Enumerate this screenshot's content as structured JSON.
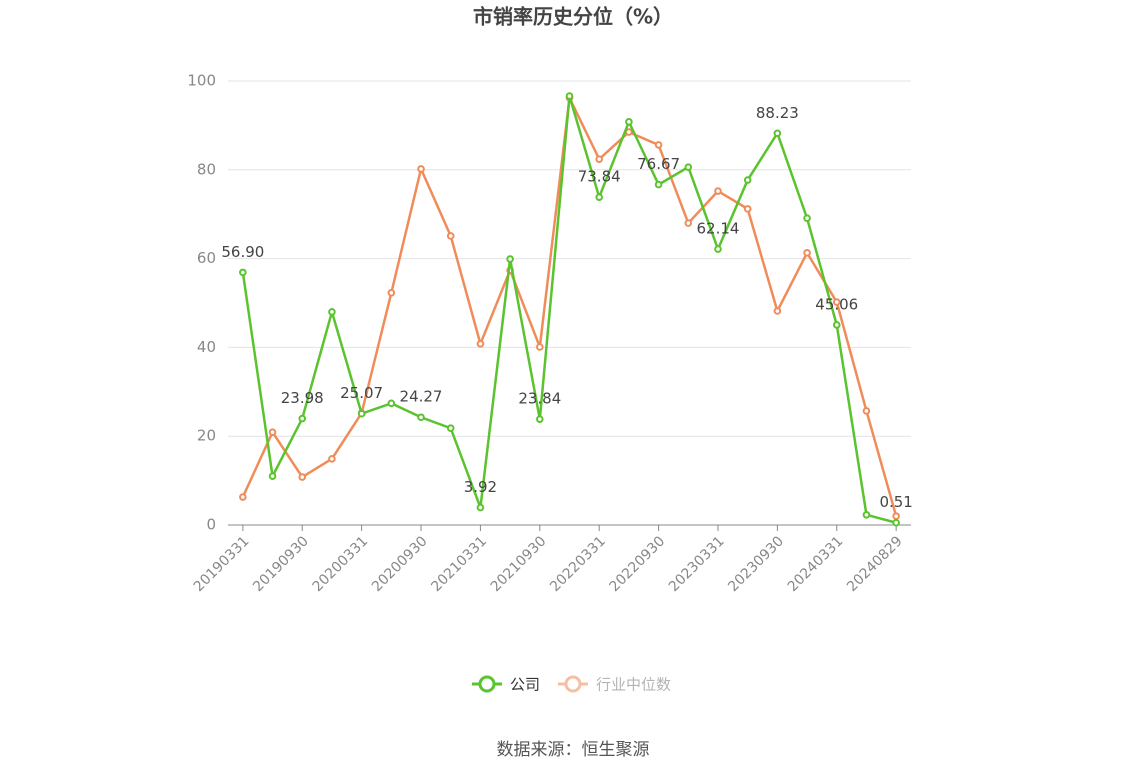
{
  "chart_data": {
    "type": "line",
    "title": "市销率历史分位（%）",
    "source": "数据来源：恒生聚源",
    "categories": [
      "20190331",
      null,
      "20190930",
      null,
      "20200331",
      null,
      "20200930",
      null,
      "20210331",
      null,
      "20210930",
      null,
      "20220331",
      null,
      "20220930",
      null,
      "20230331",
      null,
      "20230930",
      null,
      "20240331",
      null,
      "20240829"
    ],
    "series": [
      {
        "name": "公司",
        "color": "#5ac32d",
        "values": [
          56.9,
          11.0,
          23.98,
          48.0,
          25.07,
          27.4,
          24.27,
          21.8,
          3.92,
          59.9,
          23.84,
          96.6,
          73.84,
          90.8,
          76.67,
          80.6,
          62.14,
          77.7,
          88.23,
          69.1,
          45.06,
          2.3,
          0.51
        ],
        "value_labels": [
          "56.90",
          null,
          "23.98",
          null,
          "25.07",
          null,
          "24.27",
          null,
          "3.92",
          null,
          "23.84",
          null,
          "73.84",
          null,
          "76.67",
          null,
          "62.14",
          null,
          "88.23",
          null,
          "45.06",
          null,
          "0.51"
        ]
      },
      {
        "name": "行业中位数",
        "color": "#f08c5a",
        "values": [
          6.3,
          20.9,
          10.8,
          14.9,
          25.2,
          52.3,
          80.2,
          65.1,
          40.8,
          57.4,
          40.1,
          96.2,
          82.4,
          88.5,
          85.6,
          68.0,
          75.2,
          71.2,
          48.2,
          61.3,
          50.2,
          25.7,
          2.0
        ]
      }
    ],
    "ylim": [
      0,
      100
    ],
    "yticks": [
      0,
      20,
      40,
      60,
      80,
      100
    ],
    "grid": true
  }
}
